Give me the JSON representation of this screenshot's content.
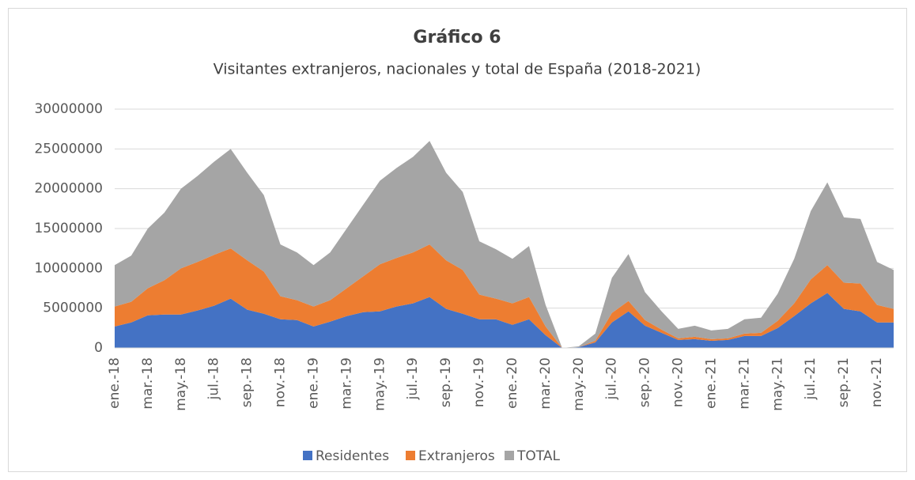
{
  "chart_data": {
    "type": "stacked_area",
    "title": "Gráfico 6",
    "subtitle": "Visitantes extranjeros, nacionales y total de España (2018-2021)",
    "categories": [
      "ene.-18",
      null,
      "mar.-18",
      null,
      "may.-18",
      null,
      "jul.-18",
      null,
      "sep.-18",
      null,
      "nov.-18",
      null,
      "ene.-19",
      null,
      "mar.-19",
      null,
      "may.-19",
      null,
      "jul.-19",
      null,
      "sep.-19",
      null,
      "nov.-19",
      null,
      "ene.-20",
      null,
      "mar.-20",
      null,
      "may.-20",
      null,
      "jul.-20",
      null,
      "sep.-20",
      null,
      "nov.-20",
      null,
      "ene.-21",
      null,
      "mar.-21",
      null,
      "may.-21",
      null,
      "jul.-21",
      null,
      "sep.-21",
      null,
      "nov.-21",
      null
    ],
    "series": [
      {
        "name": "Residentes",
        "color": "#4472c4",
        "values": [
          2700000,
          3200000,
          4100000,
          4200000,
          4200000,
          4700000,
          5300000,
          6200000,
          4800000,
          4300000,
          3600000,
          3500000,
          2700000,
          3300000,
          4000000,
          4500000,
          4600000,
          5200000,
          5600000,
          6400000,
          4900000,
          4300000,
          3600000,
          3600000,
          2900000,
          3600000,
          1600000,
          0,
          100000,
          700000,
          3200000,
          4600000,
          2800000,
          1900000,
          1000000,
          1100000,
          900000,
          1000000,
          1500000,
          1500000,
          2500000,
          4000000,
          5600000,
          6900000,
          4900000,
          4600000,
          3200000,
          3200000
        ]
      },
      {
        "name": "Extranjeros",
        "color": "#ed7d31",
        "values": [
          2500000,
          2600000,
          3400000,
          4300000,
          5800000,
          6100000,
          6400000,
          6300000,
          6200000,
          5300000,
          2900000,
          2500000,
          2500000,
          2700000,
          3500000,
          4500000,
          5900000,
          6100000,
          6400000,
          6600000,
          6100000,
          5500000,
          3100000,
          2600000,
          2700000,
          2800000,
          1100000,
          0,
          0,
          200000,
          1200000,
          1300000,
          700000,
          400000,
          200000,
          300000,
          200000,
          200000,
          300000,
          400000,
          900000,
          1600000,
          3000000,
          3500000,
          3300000,
          3500000,
          2200000,
          1700000
        ]
      },
      {
        "name": "TOTAL",
        "color": "#a5a5a5",
        "values": [
          5200000,
          5800000,
          7500000,
          8500000,
          10000000,
          10800000,
          11700000,
          12500000,
          11000000,
          9600000,
          6500000,
          6000000,
          5200000,
          6000000,
          7500000,
          9000000,
          10500000,
          11300000,
          12000000,
          13000000,
          11000000,
          9800000,
          6700000,
          6200000,
          5600000,
          6400000,
          2700000,
          0,
          100000,
          900000,
          4400000,
          5900000,
          3500000,
          2300000,
          1200000,
          1400000,
          1100000,
          1200000,
          1800000,
          1900000,
          3400000,
          5600000,
          8600000,
          10400000,
          8200000,
          8100000,
          5400000,
          4900000
        ]
      }
    ],
    "ylim": [
      0,
      30000000
    ],
    "yticks": [
      0,
      5000000,
      10000000,
      15000000,
      20000000,
      25000000,
      30000000
    ],
    "grid": true,
    "legend": "bottom"
  }
}
